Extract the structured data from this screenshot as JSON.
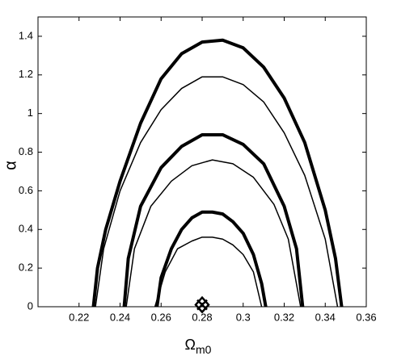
{
  "chart_data": {
    "type": "line",
    "x_label": "Ω",
    "x_label_sub": "m0",
    "y_label": "α",
    "xlim": [
      0.2,
      0.36
    ],
    "ylim": [
      0,
      1.5
    ],
    "xticks": [
      0.22,
      0.24,
      0.26,
      0.28,
      0.3,
      0.32,
      0.34,
      0.36
    ],
    "yticks": [
      0,
      0.2,
      0.4,
      0.6,
      0.8,
      1,
      1.2,
      1.4
    ],
    "series": [
      {
        "color": "#000000",
        "line_width": 4,
        "x": [
          0.227,
          0.229,
          0.233,
          0.24,
          0.25,
          0.26,
          0.27,
          0.28,
          0.29,
          0.3,
          0.31,
          0.32,
          0.33,
          0.34,
          0.345,
          0.348
        ],
        "values": [
          0,
          0.2,
          0.4,
          0.65,
          0.95,
          1.18,
          1.31,
          1.37,
          1.38,
          1.34,
          1.24,
          1.08,
          0.85,
          0.5,
          0.25,
          0
        ]
      },
      {
        "color": "#000000",
        "line_width": 1.5,
        "x": [
          0.228,
          0.232,
          0.24,
          0.25,
          0.26,
          0.27,
          0.28,
          0.29,
          0.3,
          0.31,
          0.32,
          0.33,
          0.34,
          0.346
        ],
        "values": [
          0,
          0.3,
          0.6,
          0.85,
          1.02,
          1.13,
          1.19,
          1.19,
          1.15,
          1.06,
          0.9,
          0.68,
          0.35,
          0
        ]
      },
      {
        "color": "#000000",
        "line_width": 4,
        "x": [
          0.242,
          0.244,
          0.25,
          0.26,
          0.27,
          0.28,
          0.29,
          0.3,
          0.31,
          0.32,
          0.326,
          0.329
        ],
        "values": [
          0,
          0.25,
          0.52,
          0.72,
          0.83,
          0.89,
          0.89,
          0.84,
          0.74,
          0.52,
          0.3,
          0
        ]
      },
      {
        "color": "#000000",
        "line_width": 1.5,
        "x": [
          0.243,
          0.247,
          0.255,
          0.265,
          0.275,
          0.285,
          0.295,
          0.305,
          0.315,
          0.322,
          0.328
        ],
        "values": [
          0,
          0.3,
          0.52,
          0.65,
          0.73,
          0.76,
          0.74,
          0.67,
          0.53,
          0.35,
          0
        ]
      },
      {
        "color": "#000000",
        "line_width": 4,
        "x": [
          0.258,
          0.26,
          0.265,
          0.27,
          0.275,
          0.28,
          0.285,
          0.29,
          0.295,
          0.3,
          0.305,
          0.309,
          0.311
        ],
        "values": [
          0,
          0.15,
          0.3,
          0.4,
          0.46,
          0.49,
          0.49,
          0.48,
          0.44,
          0.38,
          0.27,
          0.12,
          0
        ]
      },
      {
        "color": "#000000",
        "line_width": 1.5,
        "x": [
          0.257,
          0.262,
          0.268,
          0.275,
          0.28,
          0.285,
          0.29,
          0.295,
          0.3,
          0.305,
          0.309
        ],
        "values": [
          0,
          0.18,
          0.3,
          0.34,
          0.36,
          0.36,
          0.35,
          0.32,
          0.27,
          0.18,
          0
        ]
      }
    ],
    "best_fit": {
      "x": 0.28,
      "y": 0.01
    }
  }
}
